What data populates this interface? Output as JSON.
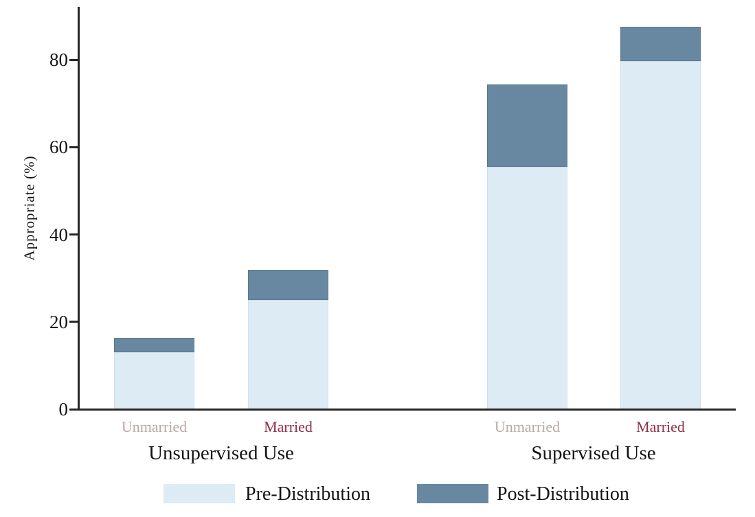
{
  "chart_data": {
    "type": "bar",
    "stacked": true,
    "title": "",
    "xlabel": "",
    "ylabel": "Appropriate (%)",
    "ylim": [
      0,
      92
    ],
    "yticks": [
      0,
      20,
      40,
      60,
      80
    ],
    "grid": false,
    "legend_position": "bottom",
    "groups": [
      "Unsupervised Use",
      "Supervised Use"
    ],
    "categories": [
      "Unmarried",
      "Married",
      "Unmarried",
      "Married"
    ],
    "category_group_index": [
      0,
      0,
      1,
      1
    ],
    "series": [
      {
        "name": "Pre-Distribution",
        "color": "#dcebf4",
        "values": [
          13.0,
          25.0,
          55.5,
          79.7
        ]
      },
      {
        "name": "Post-Distribution",
        "color": "#6888a2",
        "values": [
          3.3,
          6.9,
          18.8,
          7.9
        ]
      }
    ],
    "stack_totals": [
      16.3,
      31.9,
      74.3,
      87.6
    ],
    "category_label_colors": {
      "Unmarried": "#bca7a7",
      "Married": "#8e3044"
    },
    "axis_color": "#262626",
    "text_color": "#141414"
  }
}
